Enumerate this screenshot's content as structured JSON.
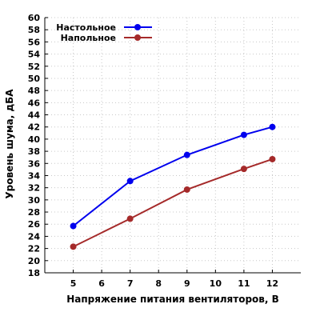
{
  "chart_data": {
    "type": "line",
    "title": "",
    "xlabel": "Напряжение питания вентиляторов, В",
    "ylabel": "Уровень шума, дБА",
    "xlim": [
      4,
      13
    ],
    "ylim": [
      18,
      60
    ],
    "x_ticks": [
      5,
      6,
      7,
      8,
      9,
      10,
      11,
      12
    ],
    "y_ticks": [
      18,
      20,
      22,
      24,
      26,
      28,
      30,
      32,
      34,
      36,
      38,
      40,
      42,
      44,
      46,
      48,
      50,
      52,
      54,
      56,
      58,
      60
    ],
    "grid": true,
    "legend_position": "top-left",
    "series": [
      {
        "name": "Настольное",
        "color": "#0000ee",
        "x": [
          5,
          7,
          9,
          11,
          12
        ],
        "values": [
          25.7,
          33.1,
          37.4,
          40.7,
          42.0
        ]
      },
      {
        "name": "Напольное",
        "color": "#a52a2a",
        "x": [
          5,
          7,
          9,
          11,
          12
        ],
        "values": [
          22.3,
          26.9,
          31.7,
          35.1,
          36.7
        ]
      }
    ]
  }
}
